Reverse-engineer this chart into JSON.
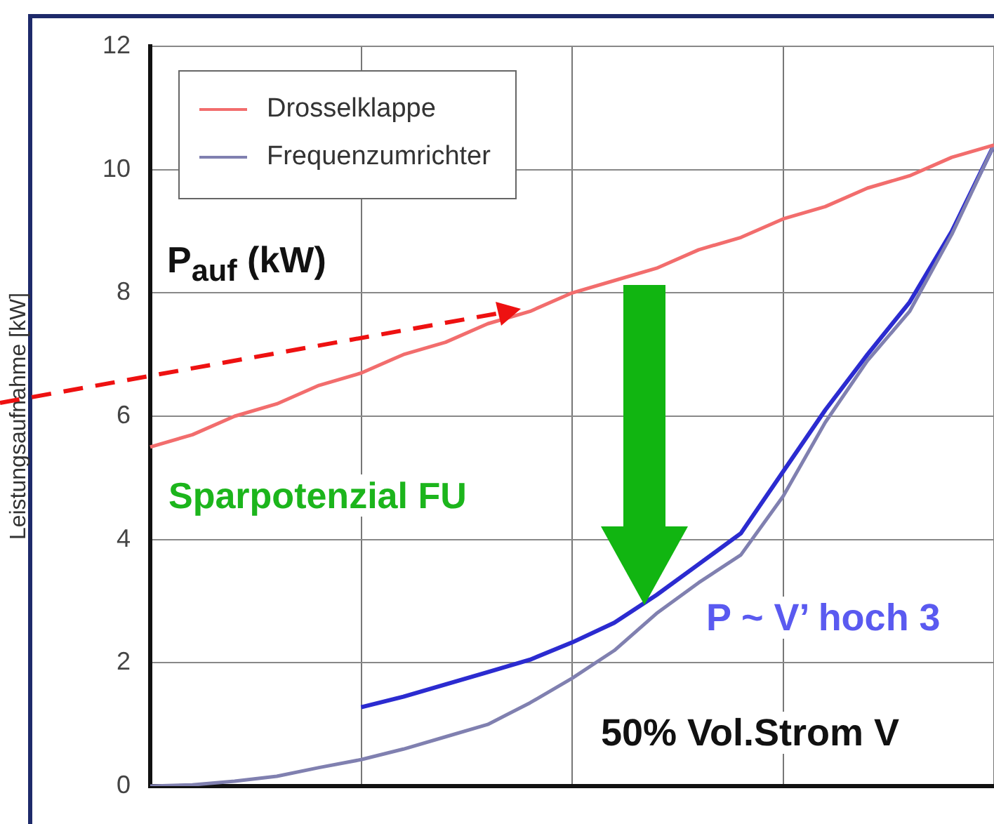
{
  "chart_data": {
    "type": "line",
    "ylabel": "Leistungsaufnahme [kW]",
    "categories": [
      null,
      null,
      null,
      null,
      null,
      null,
      null,
      null,
      null,
      null,
      null,
      null,
      null,
      null,
      null,
      null,
      null,
      null,
      null,
      null,
      null
    ],
    "ylim": [
      0,
      12
    ],
    "yticks": [
      0,
      2,
      4,
      6,
      8,
      10,
      12
    ],
    "tick_labels": "y",
    "grid": true,
    "legend": "top left",
    "marker": "none",
    "line_style": "solid",
    "series": [
      {
        "name": "Drosselklappe",
        "color": "#f26d6d",
        "values": [
          5.5,
          5.7,
          6.0,
          6.2,
          6.5,
          6.7,
          7.0,
          7.2,
          7.5,
          7.7,
          8.0,
          8.2,
          8.4,
          8.7,
          8.9,
          9.2,
          9.4,
          9.7,
          9.9,
          10.2,
          10.4
        ]
      },
      {
        "name": "Frequenzumrichter",
        "color": "#8080b0",
        "values": [
          0,
          0.02,
          0.08,
          0.16,
          0.3,
          0.43,
          0.6,
          0.8,
          1.0,
          1.35,
          1.75,
          2.2,
          2.8,
          3.3,
          3.75,
          4.7,
          5.9,
          6.9,
          7.7,
          8.95,
          10.4
        ]
      },
      {
        "color": "#2b2bd0",
        "values": [
          null,
          null,
          null,
          null,
          null,
          1.28,
          1.45,
          1.65,
          1.85,
          2.05,
          2.33,
          2.65,
          3.1,
          3.6,
          4.1,
          5.1,
          6.1,
          7.0,
          7.85,
          9.0,
          10.4
        ]
      }
    ],
    "annotations": [
      "P$_{auf}$ (kW)",
      "Sparpotenzial FU",
      "P ~ V’ hoch 3",
      "50%  Vol.Strom V"
    ]
  }
}
